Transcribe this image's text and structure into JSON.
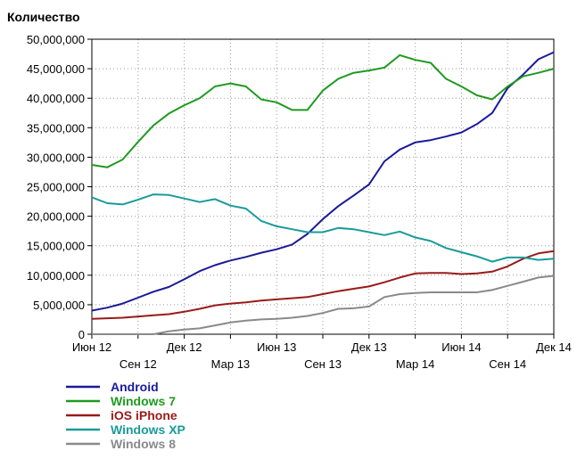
{
  "chart_data": {
    "type": "line",
    "ylabel": "Количество",
    "xlabel": "",
    "ylim": [
      0,
      50000000
    ],
    "yticks": [
      0,
      5000000,
      10000000,
      15000000,
      20000000,
      25000000,
      30000000,
      35000000,
      40000000,
      45000000,
      50000000
    ],
    "ytick_labels": [
      "0",
      "5,000,000",
      "10,000,000",
      "15,000,000",
      "20,000,000",
      "25,000,000",
      "30,000,000",
      "35,000,000",
      "40,000,000",
      "45,000,000",
      "50,000,000"
    ],
    "x": [
      "Июн 12",
      "Июл 12",
      "Авг 12",
      "Сен 12",
      "Окт 12",
      "Ноя 12",
      "Дек 12",
      "Янв 13",
      "Фев 13",
      "Мар 13",
      "Апр 13",
      "Май 13",
      "Июн 13",
      "Июл 13",
      "Авг 13",
      "Сен 13",
      "Окт 13",
      "Ноя 13",
      "Дек 13",
      "Янв 14",
      "Фев 14",
      "Мар 14",
      "Апр 14",
      "Май 14",
      "Июн 14",
      "Июл 14",
      "Авг 14",
      "Сен 14",
      "Окт 14",
      "Ноя 14",
      "Дек 14"
    ],
    "xtick_labels": [
      {
        "label": "Июн 12",
        "index": 0,
        "row": 1
      },
      {
        "label": "Сен 12",
        "index": 3,
        "row": 2
      },
      {
        "label": "Дек 12",
        "index": 6,
        "row": 1
      },
      {
        "label": "Мар 13",
        "index": 9,
        "row": 2
      },
      {
        "label": "Июн 13",
        "index": 12,
        "row": 1
      },
      {
        "label": "Сен 13",
        "index": 15,
        "row": 2
      },
      {
        "label": "Дек 13",
        "index": 18,
        "row": 1
      },
      {
        "label": "Мар 14",
        "index": 21,
        "row": 2
      },
      {
        "label": "Июн 14",
        "index": 24,
        "row": 1
      },
      {
        "label": "Сен 14",
        "index": 27,
        "row": 2
      },
      {
        "label": "Дек 14",
        "index": 30,
        "row": 1
      }
    ],
    "grid": true,
    "legend_position": "bottom-left",
    "series": [
      {
        "name": "Android",
        "color": "#1a1a9a",
        "values": [
          4000000,
          4500000,
          5200000,
          6200000,
          7200000,
          8000000,
          9300000,
          10700000,
          11700000,
          12500000,
          13100000,
          13800000,
          14400000,
          15200000,
          17000000,
          19500000,
          21700000,
          23500000,
          25400000,
          29300000,
          31300000,
          32500000,
          32900000,
          33500000,
          34200000,
          35600000,
          37500000,
          41700000,
          44000000,
          46600000,
          47800000
        ]
      },
      {
        "name": "Windows 7",
        "color": "#1f9a1f",
        "values": [
          28700000,
          28300000,
          29600000,
          32600000,
          35400000,
          37400000,
          38800000,
          40000000,
          42000000,
          42500000,
          42000000,
          39800000,
          39300000,
          38000000,
          38000000,
          41300000,
          43300000,
          44300000,
          44700000,
          45200000,
          47300000,
          46500000,
          46000000,
          43300000,
          42000000,
          40500000,
          39800000,
          42000000,
          43700000,
          44300000,
          45000000
        ]
      },
      {
        "name": "iOS iPhone",
        "color": "#9a1a1a",
        "values": [
          2600000,
          2700000,
          2800000,
          3000000,
          3200000,
          3400000,
          3800000,
          4300000,
          4900000,
          5200000,
          5400000,
          5700000,
          5900000,
          6100000,
          6300000,
          6800000,
          7300000,
          7700000,
          8100000,
          8800000,
          9600000,
          10300000,
          10400000,
          10400000,
          10200000,
          10300000,
          10600000,
          11500000,
          12800000,
          13700000,
          14100000
        ]
      },
      {
        "name": "Windows XP",
        "color": "#1a9a9a",
        "values": [
          23200000,
          22200000,
          22000000,
          22800000,
          23700000,
          23600000,
          23000000,
          22400000,
          22900000,
          21800000,
          21300000,
          19200000,
          18300000,
          17800000,
          17300000,
          17300000,
          18000000,
          17800000,
          17300000,
          16800000,
          17400000,
          16400000,
          15800000,
          14600000,
          13900000,
          13200000,
          12300000,
          13000000,
          13000000,
          12600000,
          12800000
        ]
      },
      {
        "name": "Windows 8",
        "color": "#8a8a8a",
        "values": [
          0,
          0,
          0,
          0,
          0,
          500000,
          800000,
          1000000,
          1500000,
          2000000,
          2300000,
          2500000,
          2600000,
          2800000,
          3100000,
          3600000,
          4300000,
          4400000,
          4700000,
          6300000,
          6800000,
          7000000,
          7100000,
          7100000,
          7100000,
          7100000,
          7500000,
          8200000,
          8900000,
          9600000,
          9900000
        ]
      }
    ]
  }
}
